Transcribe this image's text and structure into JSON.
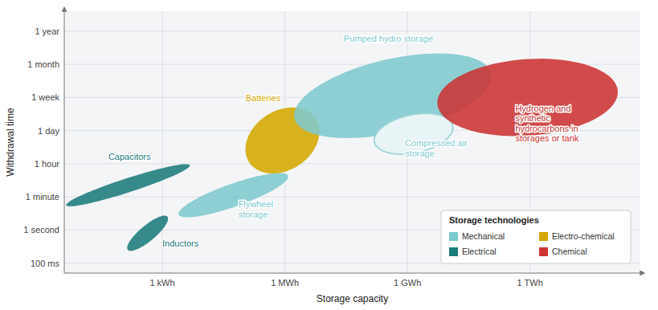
{
  "chart_data": {
    "type": "ellipse",
    "xlabel": "Storage capacity",
    "ylabel": "Withdrawal time",
    "xlim": [
      0.2,
      4.9
    ],
    "ylim": [
      -0.3,
      7.6
    ],
    "xticks": [
      {
        "value": 1,
        "label": "1 kWh"
      },
      {
        "value": 2,
        "label": "1 MWh"
      },
      {
        "value": 3,
        "label": "1 GWh"
      },
      {
        "value": 4,
        "label": "1 TWh"
      }
    ],
    "yticks": [
      {
        "value": 0,
        "label": "100 ms"
      },
      {
        "value": 1,
        "label": "1 second"
      },
      {
        "value": 2,
        "label": "1 minute"
      },
      {
        "value": 3,
        "label": "1 hour"
      },
      {
        "value": 4,
        "label": "1 day"
      },
      {
        "value": 5,
        "label": "1 week"
      },
      {
        "value": 6,
        "label": "1 month"
      },
      {
        "value": 7,
        "label": "1 year"
      }
    ],
    "grid": true,
    "legend": "lower right",
    "legend_title": "Storage technologies",
    "legend_items": [
      {
        "label": "Mechanical",
        "color": "#7ecace"
      },
      {
        "label": "Electro-chemical",
        "color": "#d4a800"
      },
      {
        "label": "Electrical",
        "color": "#1b7b7b"
      },
      {
        "label": "Chemical",
        "color": "#cc3333"
      }
    ],
    "series": [
      {
        "name": "Capacitors",
        "color": "#1b7b7b",
        "label_color": "#1b7b7b",
        "cx": 0.72,
        "cy": 2.35,
        "width": 0.28,
        "height": 1.6,
        "angle": -38,
        "label_x": 0.56,
        "label_y": 3.05
      },
      {
        "name": "Inductors",
        "color": "#1b7b7b",
        "label_color": "#1b7b7b",
        "cx": 0.88,
        "cy": 0.9,
        "width": 0.18,
        "height": 1.1,
        "angle": -15,
        "label_x": 1.0,
        "label_y": 0.42
      },
      {
        "name": "Flywheel\nstorage",
        "color": "#7ecace",
        "label_color": "#7ecace",
        "cx": 1.58,
        "cy": 2.05,
        "width": 0.42,
        "height": 1.55,
        "angle": -32,
        "label_x": 1.62,
        "label_y": 1.3
      },
      {
        "name": "Batteries",
        "color": "#d4a800",
        "label_color": "#d4a800",
        "cx": 1.98,
        "cy": 3.7,
        "width": 0.58,
        "height": 2.0,
        "angle": -5,
        "label_x": 1.68,
        "label_y": 4.82
      },
      {
        "name": "Pumped hydro storage",
        "color": "#7ecace",
        "label_color": "#7ecace",
        "cx": 2.88,
        "cy": 5.05,
        "width": 1.35,
        "height": 2.7,
        "angle": -22,
        "label_x": 2.48,
        "label_y": 6.6
      },
      {
        "name": "Compressed air\nstorage",
        "color": "#e8f4f5",
        "border_color": "#9dd4d8",
        "label_color": "#7ecace",
        "cx": 3.05,
        "cy": 3.9,
        "width": 0.6,
        "height": 1.25,
        "angle": -12,
        "label_x": 2.98,
        "label_y": 3.15
      },
      {
        "name": "Hydrogen and\nsynthetic\nhydrocarbons in\nstorages or tank",
        "color": "#cc3333",
        "label_color": "#cc3333",
        "cx": 3.98,
        "cy": 5.0,
        "width": 1.45,
        "height": 2.35,
        "angle": -8,
        "label_x": 3.88,
        "label_y": 3.6
      }
    ]
  }
}
